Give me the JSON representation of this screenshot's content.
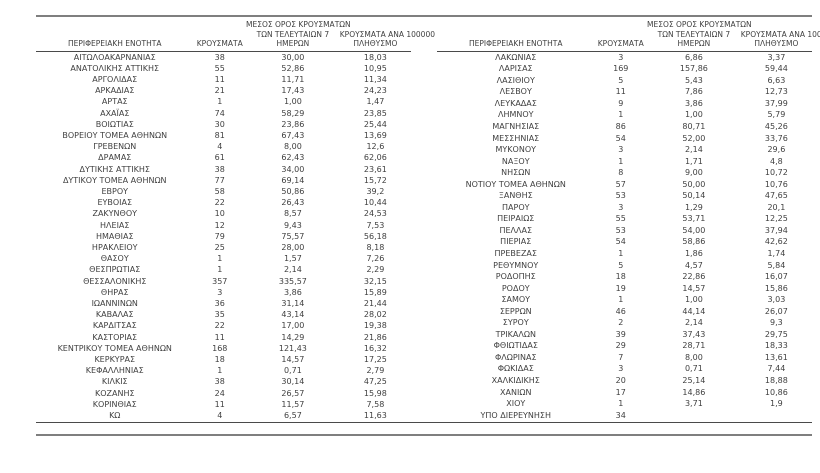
{
  "headers": {
    "region": "ΠΕΡΙΦΕΡΕΙΑΚΗ ΕΝΟΤΗΤΑ",
    "cases": "ΚΡΟΥΣΜΑΤΑ",
    "avg7_line1": "ΜΕΣΟΣ ΟΡΟΣ ΚΡΟΥΣΜΑΤΩΝ",
    "avg7_line2": "ΤΩΝ ΤΕΛΕΥΤΑΙΩΝ 7",
    "avg7_line3": "ΗΜΕΡΩΝ",
    "per100k_line1": "ΚΡΟΥΣΜΑΤΑ ΑΝΑ 100000",
    "per100k_line2": "ΠΛΗΘΥΣΜΟ"
  },
  "colors": {
    "text": "#3f3f3f",
    "rule_thick": "#7f7f7f",
    "rule_thin": "#4a4a4a",
    "background": "#ffffff"
  },
  "left_rows": [
    [
      "ΑΙΤΩΛΟΑΚΑΡΝΑΝΙΑΣ",
      "38",
      "30,00",
      "18,03"
    ],
    [
      "ΑΝΑΤΟΛΙΚΗΣ ΑΤΤΙΚΗΣ",
      "55",
      "52,86",
      "10,95"
    ],
    [
      "ΑΡΓΟΛΙΔΑΣ",
      "11",
      "11,71",
      "11,34"
    ],
    [
      "ΑΡΚΑΔΙΑΣ",
      "21",
      "17,43",
      "24,23"
    ],
    [
      "ΑΡΤΑΣ",
      "1",
      "1,00",
      "1,47"
    ],
    [
      "ΑΧΑΪΑΣ",
      "74",
      "58,29",
      "23,85"
    ],
    [
      "ΒΟΙΩΤΙΑΣ",
      "30",
      "23,86",
      "25,44"
    ],
    [
      "ΒΟΡΕΙΟΥ ΤΟΜΕΑ ΑΘΗΝΩΝ",
      "81",
      "67,43",
      "13,69"
    ],
    [
      "ΓΡΕΒΕΝΩΝ",
      "4",
      "8,00",
      "12,6"
    ],
    [
      "ΔΡΑΜΑΣ",
      "61",
      "62,43",
      "62,06"
    ],
    [
      "ΔΥΤΙΚΗΣ ΑΤΤΙΚΗΣ",
      "38",
      "34,00",
      "23,61"
    ],
    [
      "ΔΥΤΙΚΟΥ ΤΟΜΕΑ ΑΘΗΝΩΝ",
      "77",
      "69,14",
      "15,72"
    ],
    [
      "ΕΒΡΟΥ",
      "58",
      "50,86",
      "39,2"
    ],
    [
      "ΕΥΒΟΙΑΣ",
      "22",
      "26,43",
      "10,44"
    ],
    [
      "ΖΑΚΥΝΘΟΥ",
      "10",
      "8,57",
      "24,53"
    ],
    [
      "ΗΛΕΙΑΣ",
      "12",
      "9,43",
      "7,53"
    ],
    [
      "ΗΜΑΘΙΑΣ",
      "79",
      "75,57",
      "56,18"
    ],
    [
      "ΗΡΑΚΛΕΙΟΥ",
      "25",
      "28,00",
      "8,18"
    ],
    [
      "ΘΑΣΟΥ",
      "1",
      "1,57",
      "7,26"
    ],
    [
      "ΘΕΣΠΡΩΤΙΑΣ",
      "1",
      "2,14",
      "2,29"
    ],
    [
      "ΘΕΣΣΑΛΟΝΙΚΗΣ",
      "357",
      "335,57",
      "32,15"
    ],
    [
      "ΘΗΡΑΣ",
      "3",
      "3,86",
      "15,89"
    ],
    [
      "ΙΩΑΝΝΙΝΩΝ",
      "36",
      "31,14",
      "21,44"
    ],
    [
      "ΚΑΒΑΛΑΣ",
      "35",
      "43,14",
      "28,02"
    ],
    [
      "ΚΑΡΔΙΤΣΑΣ",
      "22",
      "17,00",
      "19,38"
    ],
    [
      "ΚΑΣΤΟΡΙΑΣ",
      "11",
      "14,29",
      "21,86"
    ],
    [
      "ΚΕΝΤΡΙΚΟΥ ΤΟΜΕΑ ΑΘΗΝΩΝ",
      "168",
      "121,43",
      "16,32"
    ],
    [
      "ΚΕΡΚΥΡΑΣ",
      "18",
      "14,57",
      "17,25"
    ],
    [
      "ΚΕΦΑΛΛΗΝΙΑΣ",
      "1",
      "0,71",
      "2,79"
    ],
    [
      "ΚΙΛΚΙΣ",
      "38",
      "30,14",
      "47,25"
    ],
    [
      "ΚΟΖΑΝΗΣ",
      "24",
      "26,57",
      "15,98"
    ],
    [
      "ΚΟΡΙΝΘΙΑΣ",
      "11",
      "11,57",
      "7,58"
    ],
    [
      "ΚΩ",
      "4",
      "6,57",
      "11,63"
    ]
  ],
  "right_rows": [
    [
      "ΛΑΚΩΝΙΑΣ",
      "3",
      "6,86",
      "3,37"
    ],
    [
      "ΛΑΡΙΣΑΣ",
      "169",
      "157,86",
      "59,44"
    ],
    [
      "ΛΑΣΙΘΙΟΥ",
      "5",
      "5,43",
      "6,63"
    ],
    [
      "ΛΕΣΒΟΥ",
      "11",
      "7,86",
      "12,73"
    ],
    [
      "ΛΕΥΚΑΔΑΣ",
      "9",
      "3,86",
      "37,99"
    ],
    [
      "ΛΗΜΝΟΥ",
      "1",
      "1,00",
      "5,79"
    ],
    [
      "ΜΑΓΝΗΣΙΑΣ",
      "86",
      "80,71",
      "45,26"
    ],
    [
      "ΜΕΣΣΗΝΙΑΣ",
      "54",
      "52,00",
      "33,76"
    ],
    [
      "ΜΥΚΟΝΟΥ",
      "3",
      "2,14",
      "29,6"
    ],
    [
      "ΝΑΞΟΥ",
      "1",
      "1,71",
      "4,8"
    ],
    [
      "ΝΗΣΩΝ",
      "8",
      "9,00",
      "10,72"
    ],
    [
      "ΝΟΤΙΟΥ ΤΟΜΕΑ ΑΘΗΝΩΝ",
      "57",
      "50,00",
      "10,76"
    ],
    [
      "ΞΑΝΘΗΣ",
      "53",
      "50,14",
      "47,65"
    ],
    [
      "ΠΑΡΟΥ",
      "3",
      "1,29",
      "20,1"
    ],
    [
      "ΠΕΙΡΑΙΩΣ",
      "55",
      "53,71",
      "12,25"
    ],
    [
      "ΠΕΛΛΑΣ",
      "53",
      "54,00",
      "37,94"
    ],
    [
      "ΠΙΕΡΙΑΣ",
      "54",
      "58,86",
      "42,62"
    ],
    [
      "ΠΡΕΒΕΖΑΣ",
      "1",
      "1,86",
      "1,74"
    ],
    [
      "ΡΕΘΥΜΝΟΥ",
      "5",
      "4,57",
      "5,84"
    ],
    [
      "ΡΟΔΟΠΗΣ",
      "18",
      "22,86",
      "16,07"
    ],
    [
      "ΡΟΔΟΥ",
      "19",
      "14,57",
      "15,86"
    ],
    [
      "ΣΑΜΟΥ",
      "1",
      "1,00",
      "3,03"
    ],
    [
      "ΣΕΡΡΩΝ",
      "46",
      "44,14",
      "26,07"
    ],
    [
      "ΣΥΡΟΥ",
      "2",
      "2,14",
      "9,3"
    ],
    [
      "ΤΡΙΚΑΛΩΝ",
      "39",
      "37,43",
      "29,75"
    ],
    [
      "ΦΘΙΩΤΙΔΑΣ",
      "29",
      "28,71",
      "18,33"
    ],
    [
      "ΦΛΩΡΙΝΑΣ",
      "7",
      "8,00",
      "13,61"
    ],
    [
      "ΦΩΚΙΔΑΣ",
      "3",
      "0,71",
      "7,44"
    ],
    [
      "ΧΑΛΚΙΔΙΚΗΣ",
      "20",
      "25,14",
      "18,88"
    ],
    [
      "ΧΑΝΙΩΝ",
      "17",
      "14,86",
      "10,86"
    ],
    [
      "ΧΙΟΥ",
      "1",
      "3,71",
      "1,9"
    ],
    [
      "ΥΠΟ ΔΙΕΡΕΥΝΗΣΗ",
      "34",
      "",
      ""
    ]
  ]
}
